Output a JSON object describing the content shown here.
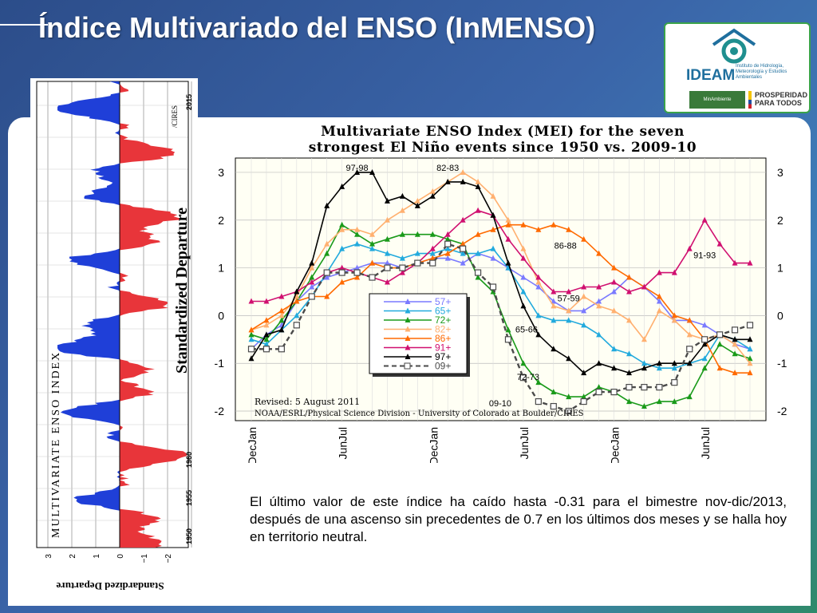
{
  "slide": {
    "title": "Índice Multivariado del ENSO (InMENSO)"
  },
  "logo": {
    "name": "IDEAM",
    "institute": "Instituto de Hidrología, Meteorología y Estudios Ambientales",
    "ministry": "MinAmbiente",
    "slogan": "PROSPERIDAD PARA TODOS"
  },
  "caption": "El último valor de este índice ha caído hasta -0.31 para el bimestre nov-dic/2013, después de una ascenso sin precedentes de 0.7 en los últimos dos meses y se halla hoy en territorio neutral.",
  "chart_data": [
    {
      "type": "area",
      "title": "MULTIVARIATE ENSO INDEX",
      "ylabel": "Standardized Departure",
      "credit": "/CIRES",
      "x_tick_labels": [
        "1950",
        "1955",
        "1960",
        "2015"
      ],
      "y_ticks": [
        "3",
        "2",
        "1",
        "0",
        "−1",
        "−2"
      ],
      "ylim": [
        -3,
        3
      ],
      "colors": {
        "positive": "#e8353a",
        "negative": "#1f3fd8"
      }
    },
    {
      "type": "line",
      "title": "Multivariate ENSO Index (MEI) for the seven strongest El Niño events since 1950 vs. 2009-10",
      "revised": "Revised: 5 August 2011",
      "credit": "NOAA/ESRL/Physical Science Division - University of Colorado at Boulder/CIRES",
      "x_tick_labels": [
        "DecJan",
        "JunJul",
        "DecJan",
        "JunJul",
        "DecJan",
        "JunJul"
      ],
      "y_ticks": [
        3,
        2,
        1,
        0,
        -1,
        -2
      ],
      "ylim": [
        -2.2,
        3.3
      ],
      "grid": true,
      "legend_position": "inside-lower-left",
      "annotations": [
        "97-98",
        "82-83",
        "86-88",
        "91-93",
        "57-59",
        "65-66",
        "72-73",
        "09-10"
      ],
      "series": [
        {
          "name": "57+",
          "color": "#7a7aff",
          "marker": "triangle",
          "values": [
            -0.7,
            -0.4,
            -0.2,
            0.3,
            0.6,
            0.8,
            0.9,
            1.0,
            1.1,
            1.1,
            1.0,
            1.1,
            1.2,
            1.2,
            1.1,
            1.3,
            1.2,
            1.0,
            0.8,
            0.6,
            0.3,
            0.1,
            0.1,
            0.3,
            0.5,
            0.8,
            0.6,
            0.3,
            -0.1,
            -0.1,
            -0.2,
            -0.4,
            -0.6,
            -0.7
          ]
        },
        {
          "name": "65+",
          "color": "#22aadd",
          "marker": "triangle",
          "values": [
            -0.5,
            -0.6,
            -0.3,
            0.0,
            0.4,
            0.9,
            1.4,
            1.5,
            1.4,
            1.3,
            1.2,
            1.3,
            1.3,
            1.4,
            1.3,
            1.3,
            1.4,
            1.0,
            0.5,
            0.0,
            -0.1,
            -0.1,
            -0.2,
            -0.4,
            -0.7,
            -0.8,
            -1.0,
            -1.1,
            -1.1,
            -1.0,
            -0.9,
            -0.4,
            -0.5,
            -0.7
          ]
        },
        {
          "name": "72+",
          "color": "#1a9a1a",
          "marker": "triangle",
          "values": [
            -0.4,
            -0.5,
            -0.1,
            0.3,
            0.8,
            1.3,
            1.9,
            1.7,
            1.5,
            1.6,
            1.7,
            1.7,
            1.7,
            1.6,
            1.5,
            0.8,
            0.5,
            -0.3,
            -1.0,
            -1.4,
            -1.6,
            -1.7,
            -1.7,
            -1.5,
            -1.6,
            -1.8,
            -1.9,
            -1.8,
            -1.8,
            -1.7,
            -1.1,
            -0.6,
            -0.8,
            -0.9
          ]
        },
        {
          "name": "82+",
          "color": "#ffb070",
          "marker": "triangle",
          "values": [
            -0.3,
            -0.2,
            0.0,
            0.4,
            1.0,
            1.5,
            1.8,
            1.8,
            1.7,
            2.0,
            2.2,
            2.4,
            2.6,
            2.8,
            3.0,
            2.8,
            2.5,
            2.0,
            1.4,
            0.7,
            0.2,
            0.1,
            0.4,
            0.2,
            0.1,
            -0.1,
            -0.5,
            0.1,
            -0.1,
            -0.4,
            -0.5,
            -0.4,
            -0.6,
            -1.0
          ]
        },
        {
          "name": "86+",
          "color": "#ff6a00",
          "marker": "triangle",
          "values": [
            -0.3,
            -0.1,
            0.1,
            0.3,
            0.4,
            0.4,
            0.7,
            0.8,
            1.1,
            1.0,
            1.0,
            1.1,
            1.2,
            1.3,
            1.5,
            1.7,
            1.8,
            1.9,
            1.9,
            1.8,
            1.9,
            1.8,
            1.6,
            1.3,
            1.0,
            0.8,
            0.6,
            0.4,
            0.0,
            -0.1,
            -0.5,
            -1.1,
            -1.2,
            -1.2
          ]
        },
        {
          "name": "91+",
          "color": "#d01070",
          "marker": "triangle",
          "values": [
            0.3,
            0.3,
            0.4,
            0.5,
            0.7,
            0.9,
            1.0,
            0.9,
            0.8,
            0.7,
            0.9,
            1.1,
            1.4,
            1.7,
            2.0,
            2.2,
            2.1,
            1.6,
            1.2,
            0.8,
            0.5,
            0.5,
            0.6,
            0.6,
            0.7,
            0.5,
            0.6,
            0.9,
            0.9,
            1.4,
            2.0,
            1.5,
            1.1,
            1.1
          ]
        },
        {
          "name": "97+",
          "color": "#000000",
          "marker": "triangle",
          "values": [
            -0.9,
            -0.4,
            -0.3,
            0.5,
            1.1,
            2.3,
            2.7,
            3.0,
            3.0,
            2.4,
            2.5,
            2.3,
            2.5,
            2.8,
            2.8,
            2.7,
            2.1,
            1.1,
            0.2,
            -0.4,
            -0.7,
            -0.9,
            -1.2,
            -1.0,
            -1.1,
            -1.2,
            -1.1,
            -1.0,
            -1.0,
            -1.0,
            -0.6,
            -0.4,
            -0.5,
            -0.5
          ]
        },
        {
          "name": "09+",
          "color": "#4a4a4a",
          "marker": "square",
          "dashed": true,
          "values": [
            -0.7,
            -0.7,
            -0.7,
            -0.2,
            0.4,
            0.9,
            0.9,
            0.9,
            0.8,
            1.0,
            1.0,
            1.1,
            1.1,
            1.5,
            1.4,
            0.9,
            0.6,
            -0.5,
            -1.3,
            -1.8,
            -1.9,
            -2.0,
            -1.8,
            -1.6,
            -1.6,
            -1.5,
            -1.5,
            -1.5,
            -1.4,
            -0.7,
            -0.5,
            -0.4,
            -0.3,
            -0.2
          ]
        }
      ]
    }
  ]
}
